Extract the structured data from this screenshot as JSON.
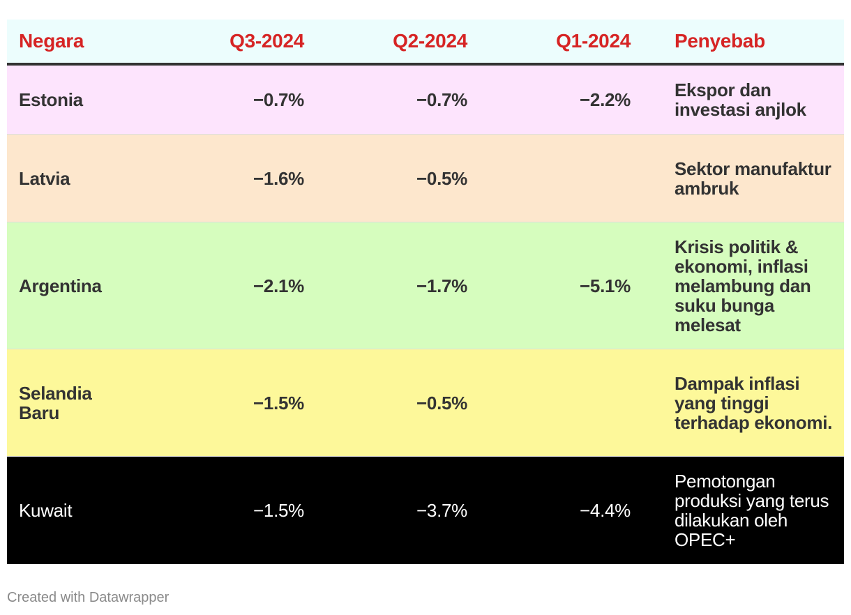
{
  "colors": {
    "header_bg": "#ecfdfd",
    "header_text": "#d62424",
    "rule": "#333333",
    "footer_text": "#8a8a8a"
  },
  "chart_data": {
    "type": "table",
    "columns": [
      "Negara",
      "Q3-2024",
      "Q2-2024",
      "Q1-2024",
      "Penyebab"
    ],
    "rows": [
      {
        "negara": "Estonia",
        "q3": "−0.7%",
        "q2": "−0.7%",
        "q1": "−2.2%",
        "penyebab": "Ekspor dan investasi anjlok",
        "bg": "#fde4fd",
        "text": "#333333",
        "bold": true
      },
      {
        "negara": "Latvia",
        "q3": "−1.6%",
        "q2": "−0.5%",
        "q1": "",
        "penyebab": "Sektor manufaktur ambruk",
        "bg": "#fde7cd",
        "text": "#333333",
        "bold": true
      },
      {
        "negara": "Argentina",
        "q3": "−2.1%",
        "q2": "−1.7%",
        "q1": "−5.1%",
        "penyebab": "Krisis politik & ekonomi, inflasi melambung dan suku bunga melesat",
        "bg": "#d6fdbe",
        "text": "#333333",
        "bold": true
      },
      {
        "negara": "Selandia Baru",
        "q3": "−1.5%",
        "q2": "−0.5%",
        "q1": "",
        "penyebab": "Dampak inflasi yang tinggi terhadap ekonomi.",
        "bg": "#fdf89a",
        "text": "#333333",
        "bold": true
      },
      {
        "negara": "Kuwait",
        "q3": "−1.5%",
        "q2": "−3.7%",
        "q1": "−4.4%",
        "penyebab": "Pemotongan produksi yang terus dilakukan oleh OPEC+",
        "bg": "#000000",
        "text": "#ffffff",
        "bold": false
      }
    ]
  },
  "footer": {
    "credit": "Created with Datawrapper"
  }
}
